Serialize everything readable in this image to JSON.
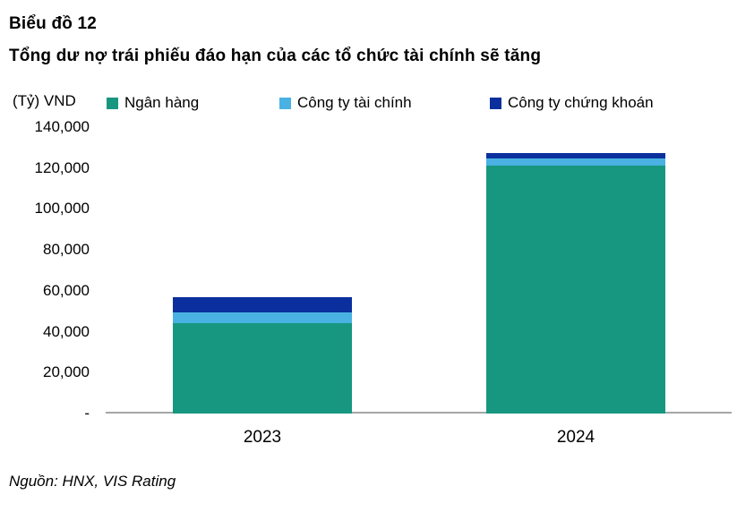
{
  "header": {
    "title": "Biểu đồ 12",
    "subtitle": "Tổng dư nợ trái phiếu đáo hạn của các tổ chức tài chính sẽ tăng"
  },
  "chart_data": {
    "type": "bar",
    "stacked": true,
    "unit_label": "(Tỷ) VND",
    "categories": [
      "2023",
      "2024"
    ],
    "series": [
      {
        "name": "Ngân hàng",
        "color": "#189780",
        "values": [
          44300,
          121300
        ]
      },
      {
        "name": "Công ty tài chính",
        "color": "#49B2E3",
        "values": [
          5000,
          3400
        ]
      },
      {
        "name": "Công ty chứng khoán",
        "color": "#0B309E",
        "values": [
          7700,
          2600
        ]
      }
    ],
    "totals": [
      57000,
      127300
    ],
    "ylim": [
      0,
      140000
    ],
    "ytick_step": 20000,
    "ytick_labels": [
      "140,000",
      "120,000",
      "100,000",
      "80,000",
      "60,000",
      "40,000",
      "20,000",
      "-"
    ],
    "grid": false,
    "legend_position": "top",
    "axis_color": "#a6a6a6"
  },
  "footer": {
    "source": "Nguồn: HNX, VIS Rating"
  }
}
